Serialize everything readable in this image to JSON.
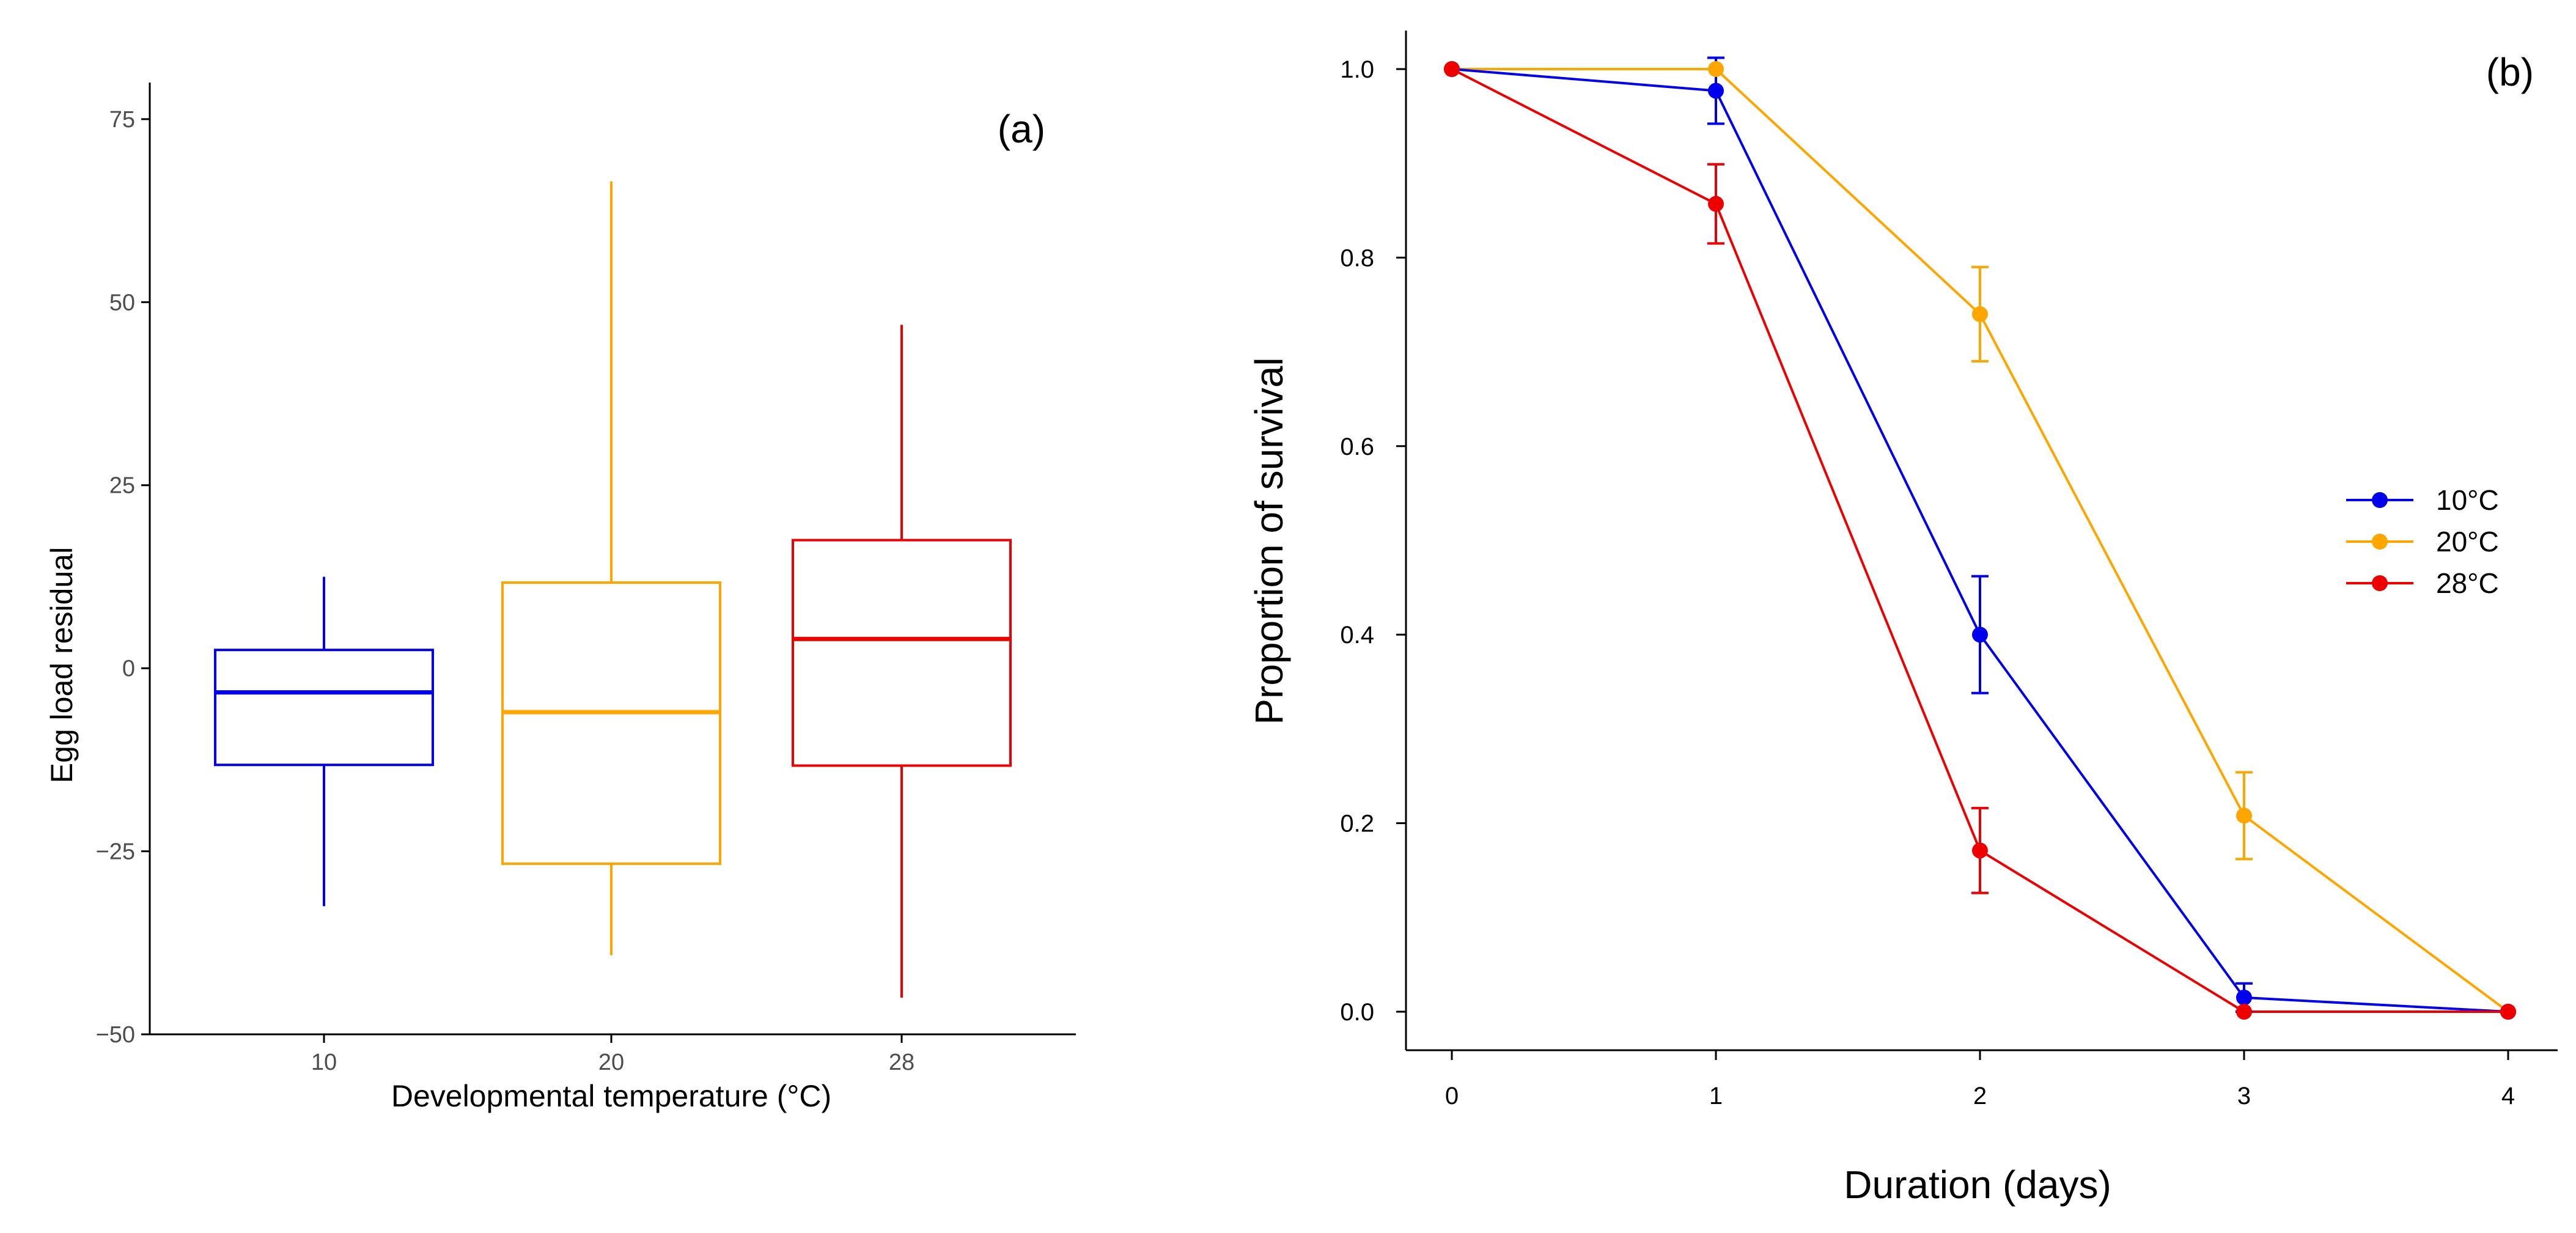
{
  "colors": {
    "c10": "#0000ee",
    "c20": "#ffa500",
    "c28": "#ee0000"
  },
  "chart_data": [
    {
      "type": "box",
      "panel_label": "(a)",
      "xlabel": "Developmental temperature (°C)",
      "ylabel": "Egg load residual",
      "ylim": [
        -50,
        80
      ],
      "yticks": [
        -50,
        -25,
        0,
        25,
        50,
        75
      ],
      "ytick_labels": [
        "−50",
        "−25",
        "0",
        "25",
        "50",
        "75"
      ],
      "categories": [
        "10",
        "20",
        "28"
      ],
      "boxes": [
        {
          "category": "10",
          "color_key": "c10",
          "min": -32.5,
          "q1": -13.2,
          "median": -3.3,
          "q3": 2.5,
          "max": 12.5
        },
        {
          "category": "20",
          "color_key": "c20",
          "min": -39.2,
          "q1": -26.7,
          "median": -6.0,
          "q3": 11.7,
          "max": 66.5
        },
        {
          "category": "28",
          "color_key": "c28",
          "min": -45.0,
          "q1": -13.3,
          "median": 4.0,
          "q3": 17.5,
          "max": 46.9
        }
      ]
    },
    {
      "type": "line",
      "panel_label": "(b)",
      "xlabel": "Duration (days)",
      "ylabel": "Proportion of survival",
      "xlim": [
        -0.15,
        4.15
      ],
      "ylim": [
        -0.04,
        1.04
      ],
      "xticks": [
        0,
        1,
        2,
        3,
        4
      ],
      "xtick_labels": [
        "0",
        "1",
        "2",
        "3",
        "4"
      ],
      "yticks": [
        0.0,
        0.2,
        0.4,
        0.6,
        0.8,
        1.0
      ],
      "ytick_labels": [
        "0.0",
        "0.2",
        "0.4",
        "0.6",
        "0.8",
        "1.0"
      ],
      "legend_position": "right",
      "series": [
        {
          "name": "10°C",
          "color_key": "c10",
          "x": [
            0,
            1,
            2,
            3,
            4
          ],
          "values": [
            1.0,
            0.977,
            0.4,
            0.015,
            0.0
          ],
          "err": [
            0,
            0.035,
            0.062,
            0.015,
            0
          ]
        },
        {
          "name": "20°C",
          "color_key": "c20",
          "x": [
            0,
            1,
            2,
            3,
            4
          ],
          "values": [
            1.0,
            1.0,
            0.74,
            0.208,
            0.0
          ],
          "err": [
            0,
            0,
            0.05,
            0.046,
            0
          ]
        },
        {
          "name": "28°C",
          "color_key": "c28",
          "x": [
            0,
            1,
            2,
            3,
            4
          ],
          "values": [
            1.0,
            0.857,
            0.171,
            0.0,
            0.0
          ],
          "err": [
            0,
            0.042,
            0.045,
            0,
            0
          ]
        }
      ]
    }
  ]
}
